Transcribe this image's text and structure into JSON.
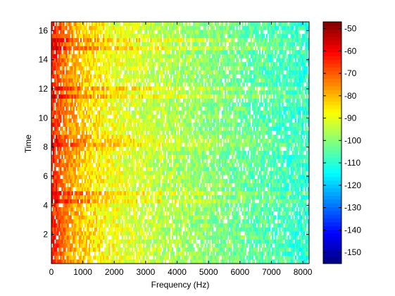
{
  "chart_data": {
    "type": "heatmap",
    "xlabel": "Frequency (Hz)",
    "ylabel": "Time",
    "xlim": [
      0,
      8200
    ],
    "ylim": [
      0,
      16.6
    ],
    "xticks": [
      0,
      1000,
      2000,
      3000,
      4000,
      5000,
      6000,
      7000,
      8000
    ],
    "yticks": [
      2,
      4,
      6,
      8,
      10,
      12,
      14,
      16
    ],
    "colorbar": {
      "range": [
        -155,
        -47
      ],
      "ticks": [
        -50,
        -60,
        -70,
        -80,
        -90,
        -100,
        -110,
        -120,
        -130,
        -140,
        -150
      ],
      "colormap": "jet"
    },
    "time_bins": 60,
    "freq_bins": 180,
    "high_energy_rows_time": [
      4.3,
      4.8,
      8.1,
      8.55,
      11.5,
      12.0,
      14.8,
      15.3
    ]
  }
}
